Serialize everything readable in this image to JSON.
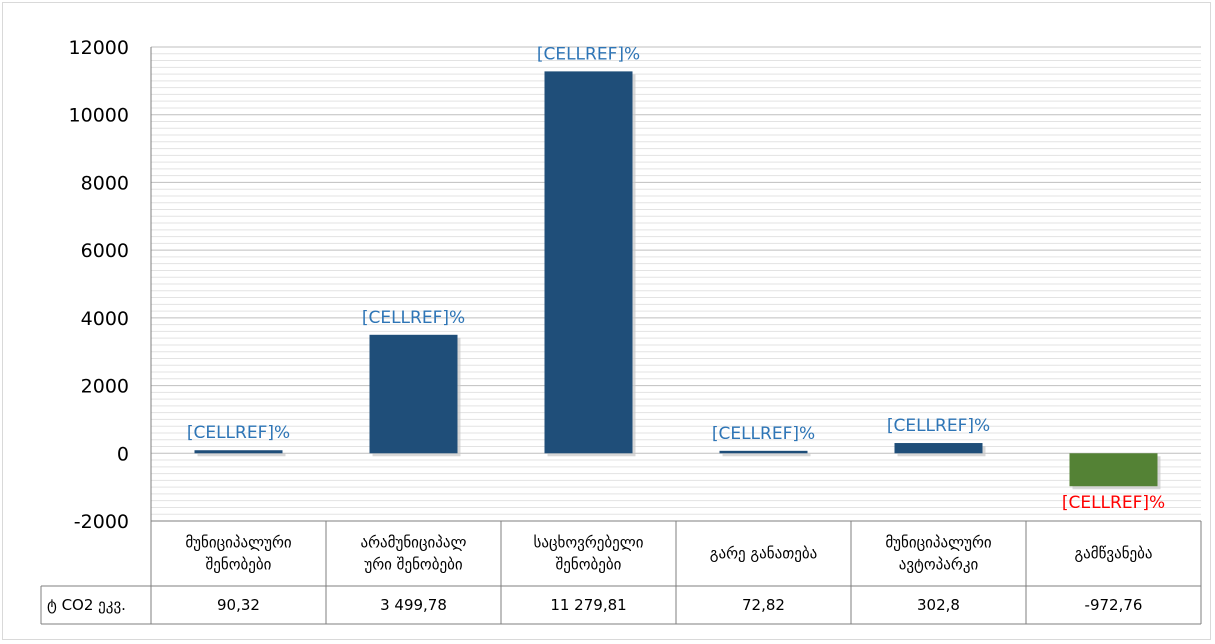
{
  "chart_data": {
    "type": "bar",
    "categories": [
      [
        "მუნიციპალური",
        "შენობები"
      ],
      [
        "არამუნიციპალ",
        "ური შენობები"
      ],
      [
        "საცხოვრებელი",
        "შენობები"
      ],
      [
        "გარე განათება"
      ],
      [
        "მუნიციპალური",
        "ავტოპარკი"
      ],
      [
        "გამწვანება"
      ]
    ],
    "series": [
      {
        "name": "ტ CO2 ეკვ.",
        "values": [
          90.32,
          3499.78,
          11279.81,
          72.82,
          302.8,
          -972.76
        ],
        "display_values": [
          "90,32",
          "3 499,78",
          "11 279,81",
          "72,82",
          "302,8",
          "-972,76"
        ]
      }
    ],
    "data_labels": [
      "[CELLREF]%",
      "[CELLREF]%",
      "[CELLREF]%",
      "[CELLREF]%",
      "[CELLREF]%",
      "[CELLREF]%"
    ],
    "ylim": [
      -2000,
      12000
    ],
    "yticks": [
      12000,
      10000,
      8000,
      6000,
      4000,
      2000,
      0,
      -2000
    ],
    "minor_gridlines": true,
    "title": "",
    "xlabel": "",
    "ylabel": "",
    "data_table": true,
    "colors": {
      "positive_bar": "#1f4e79",
      "negative_bar": "#548235",
      "positive_label": "#2e75b6",
      "negative_label": "#ff0000",
      "grid": "#bfbfbf",
      "axis": "#7f7f7f"
    }
  }
}
